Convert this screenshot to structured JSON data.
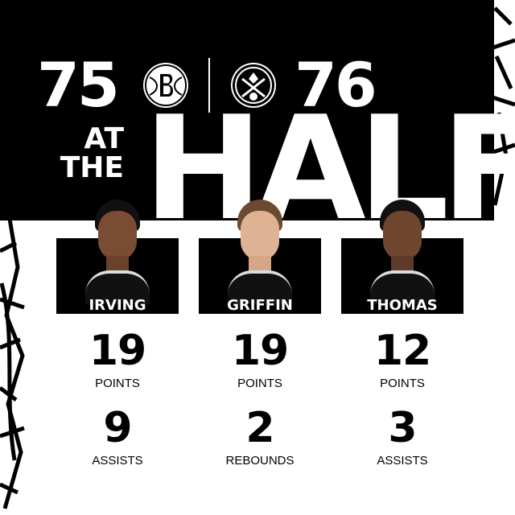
{
  "score": {
    "home": {
      "team_logo": "brooklyn-nets-logo",
      "score": "75"
    },
    "away": {
      "team_logo": "denver-nuggets-logo",
      "score": "76"
    }
  },
  "headline": {
    "small": [
      "AT",
      "THE"
    ],
    "big": "HALF"
  },
  "players": [
    {
      "name": "IRVING",
      "stats": [
        {
          "value": "19",
          "label": "POINTS"
        },
        {
          "value": "9",
          "label": "ASSISTS"
        }
      ]
    },
    {
      "name": "GRIFFIN",
      "stats": [
        {
          "value": "19",
          "label": "POINTS"
        },
        {
          "value": "2",
          "label": "REBOUNDS"
        }
      ]
    },
    {
      "name": "THOMAS",
      "stats": [
        {
          "value": "12",
          "label": "POINTS"
        },
        {
          "value": "3",
          "label": "ASSISTS"
        }
      ]
    }
  ],
  "colors": {
    "background": "#000000",
    "text": "#ffffff"
  }
}
